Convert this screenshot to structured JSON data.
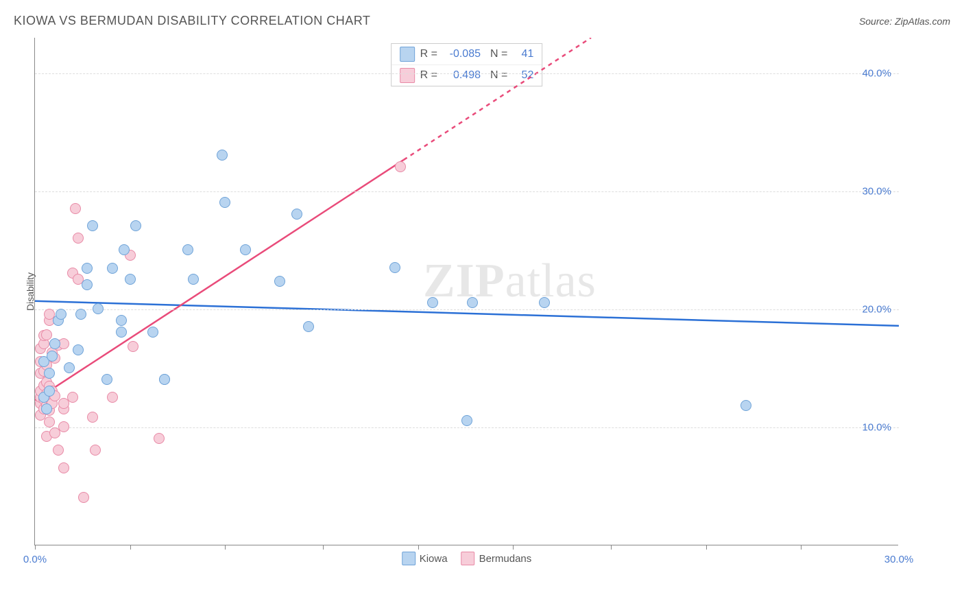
{
  "header": {
    "title": "KIOWA VS BERMUDAN DISABILITY CORRELATION CHART",
    "source": "Source: ZipAtlas.com"
  },
  "watermark": {
    "zip": "ZIP",
    "atlas": "atlas"
  },
  "chart": {
    "type": "scatter",
    "ylabel": "Disability",
    "xlim": [
      0,
      30
    ],
    "ylim": [
      0,
      43
    ],
    "ytick_values": [
      10,
      20,
      30,
      40
    ],
    "ytick_labels": [
      "10.0%",
      "20.0%",
      "30.0%",
      "40.0%"
    ],
    "xtick_values": [
      0,
      3.3,
      6.6,
      10,
      13.3,
      16.6,
      20,
      23.3,
      26.6
    ],
    "xtick_labels_shown": {
      "0": "0.0%",
      "30": "30.0%"
    },
    "grid_color": "#dddddd",
    "axis_color": "#888888",
    "background_color": "#ffffff",
    "marker_radius": 8,
    "series": {
      "kiowa": {
        "label": "Kiowa",
        "fill": "#b8d4f0",
        "stroke": "#6fa3d8",
        "regression": {
          "y_at_x0": 20.7,
          "y_at_x30": 18.6,
          "color": "#2b70d6",
          "width": 2.5
        },
        "R": "-0.085",
        "N": "41",
        "points": [
          [
            0.3,
            12.5
          ],
          [
            0.3,
            15.5
          ],
          [
            0.4,
            11.5
          ],
          [
            0.5,
            13.0
          ],
          [
            0.5,
            14.5
          ],
          [
            0.6,
            16.0
          ],
          [
            0.7,
            17.0
          ],
          [
            0.8,
            19.0
          ],
          [
            0.9,
            19.5
          ],
          [
            1.2,
            15.0
          ],
          [
            1.5,
            16.5
          ],
          [
            1.6,
            19.5
          ],
          [
            1.8,
            22.0
          ],
          [
            1.8,
            23.4
          ],
          [
            2.0,
            27.0
          ],
          [
            2.2,
            20.0
          ],
          [
            2.5,
            14.0
          ],
          [
            2.7,
            23.4
          ],
          [
            3.0,
            18.0
          ],
          [
            3.0,
            19.0
          ],
          [
            3.1,
            25.0
          ],
          [
            3.3,
            22.5
          ],
          [
            3.5,
            27.0
          ],
          [
            4.1,
            18.0
          ],
          [
            4.5,
            14.0
          ],
          [
            4.5,
            14.0
          ],
          [
            5.3,
            25.0
          ],
          [
            5.5,
            22.5
          ],
          [
            6.5,
            33.0
          ],
          [
            6.6,
            29.0
          ],
          [
            7.3,
            25.0
          ],
          [
            8.5,
            22.3
          ],
          [
            9.1,
            28.0
          ],
          [
            9.5,
            18.5
          ],
          [
            12.5,
            23.5
          ],
          [
            13.8,
            20.5
          ],
          [
            15.0,
            10.5
          ],
          [
            15.2,
            20.5
          ],
          [
            17.7,
            20.5
          ],
          [
            24.7,
            11.8
          ]
        ]
      },
      "bermudans": {
        "label": "Bermudans",
        "fill": "#f7cdd9",
        "stroke": "#e88aa6",
        "regression": {
          "y_at_x0": 12.3,
          "y_at_x30": 60.0,
          "color": "#e94b7a",
          "width": 2.5,
          "dashed_after_x": 12.8
        },
        "R": "0.498",
        "N": "52",
        "points": [
          [
            0.2,
            11.0
          ],
          [
            0.2,
            12.0
          ],
          [
            0.2,
            12.5
          ],
          [
            0.2,
            13.0
          ],
          [
            0.2,
            14.5
          ],
          [
            0.2,
            15.5
          ],
          [
            0.2,
            16.6
          ],
          [
            0.3,
            11.5
          ],
          [
            0.3,
            12.3
          ],
          [
            0.3,
            13.5
          ],
          [
            0.3,
            14.7
          ],
          [
            0.3,
            17.0
          ],
          [
            0.3,
            17.7
          ],
          [
            0.4,
            9.2
          ],
          [
            0.4,
            11.8
          ],
          [
            0.4,
            12.8
          ],
          [
            0.4,
            13.8
          ],
          [
            0.4,
            15.2
          ],
          [
            0.4,
            17.8
          ],
          [
            0.5,
            10.4
          ],
          [
            0.5,
            11.4
          ],
          [
            0.5,
            12.4
          ],
          [
            0.5,
            13.4
          ],
          [
            0.5,
            19.0
          ],
          [
            0.5,
            19.5
          ],
          [
            0.6,
            12.0
          ],
          [
            0.6,
            13.0
          ],
          [
            0.6,
            16.3
          ],
          [
            0.7,
            9.5
          ],
          [
            0.7,
            12.6
          ],
          [
            0.7,
            15.8
          ],
          [
            0.8,
            8.0
          ],
          [
            0.8,
            16.9
          ],
          [
            1.0,
            6.5
          ],
          [
            1.0,
            10.0
          ],
          [
            1.0,
            11.5
          ],
          [
            1.0,
            12.0
          ],
          [
            1.0,
            17.0
          ],
          [
            1.3,
            12.5
          ],
          [
            1.3,
            23.0
          ],
          [
            1.4,
            28.5
          ],
          [
            1.5,
            22.5
          ],
          [
            1.5,
            26.0
          ],
          [
            1.7,
            4.0
          ],
          [
            2.0,
            10.8
          ],
          [
            2.1,
            8.0
          ],
          [
            2.7,
            12.5
          ],
          [
            3.3,
            24.5
          ],
          [
            3.4,
            16.8
          ],
          [
            4.3,
            9.0
          ],
          [
            12.7,
            32.0
          ]
        ]
      }
    }
  },
  "legend_top": [
    {
      "swatch_fill": "#b8d4f0",
      "swatch_stroke": "#6fa3d8",
      "r_label": "R =",
      "r_val": "-0.085",
      "n_label": "N =",
      "n_val": "41"
    },
    {
      "swatch_fill": "#f7cdd9",
      "swatch_stroke": "#e88aa6",
      "r_label": "R =",
      "r_val": "0.498",
      "n_label": "N =",
      "n_val": "52"
    }
  ],
  "legend_bottom": [
    {
      "swatch_fill": "#b8d4f0",
      "swatch_stroke": "#6fa3d8",
      "label": "Kiowa"
    },
    {
      "swatch_fill": "#f7cdd9",
      "swatch_stroke": "#e88aa6",
      "label": "Bermudans"
    }
  ]
}
